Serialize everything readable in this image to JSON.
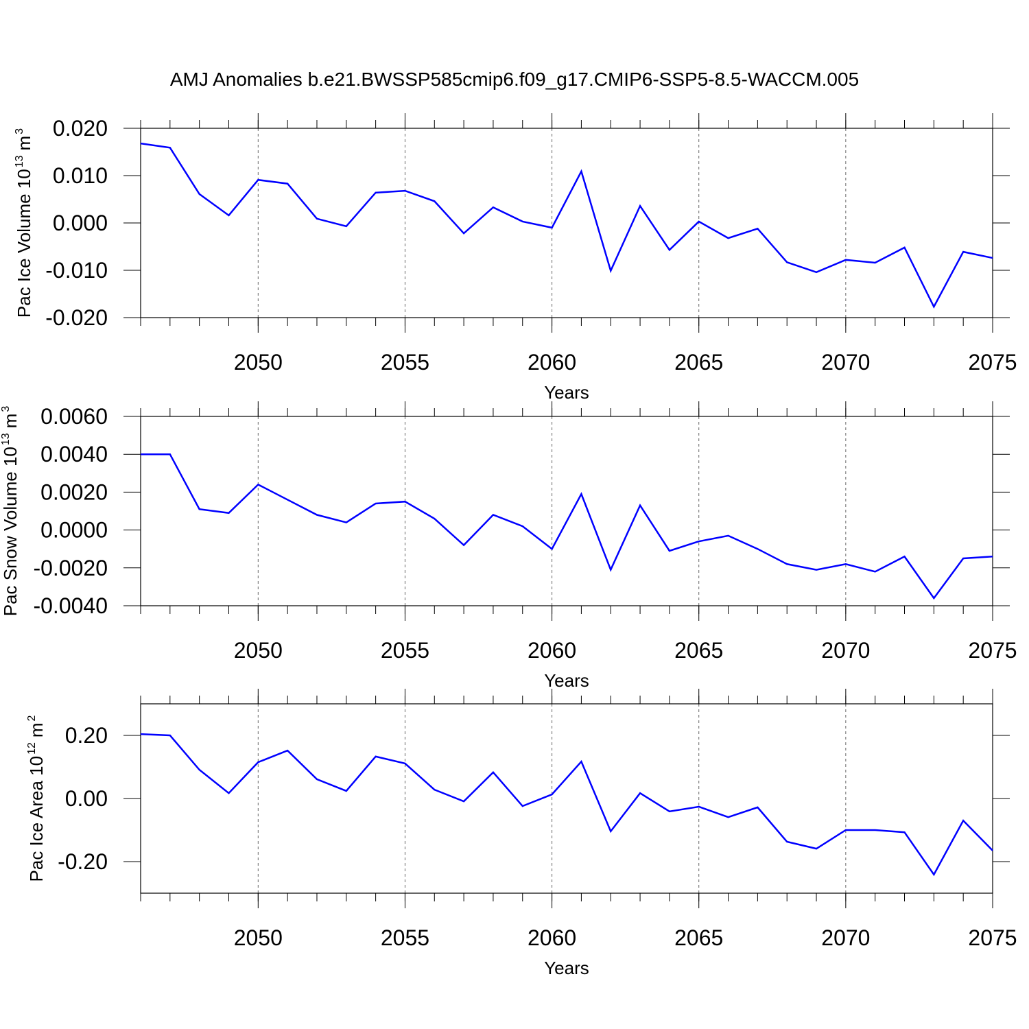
{
  "title": "AMJ Anomalies b.e21.BWSSP585cmip6.f09_g17.CMIP6-SSP5-8.5-WACCM.005",
  "chart_data": [
    {
      "type": "line",
      "xlabel": "Years",
      "ylabel": [
        "Pac Ice Volume 10",
        "13",
        "m",
        "3"
      ],
      "x": [
        2046,
        2047,
        2048,
        2049,
        2050,
        2051,
        2052,
        2053,
        2054,
        2055,
        2056,
        2057,
        2058,
        2059,
        2060,
        2061,
        2062,
        2063,
        2064,
        2065,
        2066,
        2067,
        2068,
        2069,
        2070,
        2071,
        2072,
        2073,
        2074,
        2075
      ],
      "series": [
        {
          "color": "#0000ff",
          "values": [
            0.0168,
            0.0159,
            0.0061,
            0.0016,
            0.0091,
            0.0083,
            0.0009,
            -0.0007,
            0.0064,
            0.0068,
            0.0046,
            -0.0022,
            0.0033,
            0.0003,
            -0.001,
            0.0109,
            -0.0101,
            0.0036,
            -0.0057,
            0.0003,
            -0.0032,
            -0.0012,
            -0.0083,
            -0.0104,
            -0.0078,
            -0.0084,
            -0.0052,
            -0.0177,
            -0.0061,
            -0.0074
          ]
        }
      ],
      "xlim": [
        2046,
        2075
      ],
      "xticks": [
        2050,
        2055,
        2060,
        2065,
        2070,
        2075
      ],
      "ylim": [
        -0.02,
        0.02
      ],
      "yticks": [
        {
          "value": 0.02,
          "label": "0.020"
        },
        {
          "value": 0.01,
          "label": "0.010"
        },
        {
          "value": 0,
          "label": "0.000"
        },
        {
          "value": -0.01,
          "label": "-0.010"
        },
        {
          "value": -0.02,
          "label": "-0.020"
        }
      ],
      "xgrid": true
    },
    {
      "type": "line",
      "xlabel": "Years",
      "ylabel": [
        "Pac Snow Volume 10",
        "13",
        "m",
        "3"
      ],
      "x": [
        2046,
        2047,
        2048,
        2049,
        2050,
        2051,
        2052,
        2053,
        2054,
        2055,
        2056,
        2057,
        2058,
        2059,
        2060,
        2061,
        2062,
        2063,
        2064,
        2065,
        2066,
        2067,
        2068,
        2069,
        2070,
        2071,
        2072,
        2073,
        2074,
        2075
      ],
      "series": [
        {
          "color": "#0000ff",
          "values": [
            0.004,
            0.004,
            0.0011,
            0.0009,
            0.0024,
            0.0016,
            0.0008,
            0.0004,
            0.0014,
            0.0015,
            0.0006,
            -0.0008,
            0.0008,
            0.0002,
            -0.001,
            0.0019,
            -0.0021,
            0.0013,
            -0.0011,
            -0.0006,
            -0.0003,
            -0.001,
            -0.0018,
            -0.0021,
            -0.0018,
            -0.0022,
            -0.0014,
            -0.0036,
            -0.0015,
            -0.0014
          ]
        }
      ],
      "xlim": [
        2046,
        2075
      ],
      "xticks": [
        2050,
        2055,
        2060,
        2065,
        2070,
        2075
      ],
      "ylim": [
        -0.004,
        0.006
      ],
      "yticks": [
        {
          "value": 0.006,
          "label": "0.0060"
        },
        {
          "value": 0.004,
          "label": "0.0040"
        },
        {
          "value": 0.002,
          "label": "0.0020"
        },
        {
          "value": 0,
          "label": "0.0000"
        },
        {
          "value": -0.002,
          "label": "-0.0020"
        },
        {
          "value": -0.004,
          "label": "-0.0040"
        }
      ],
      "xgrid": true
    },
    {
      "type": "line",
      "xlabel": "Years",
      "ylabel": [
        "Pac Ice Area 10",
        "12",
        "m",
        "2"
      ],
      "x": [
        2046,
        2047,
        2048,
        2049,
        2050,
        2051,
        2052,
        2053,
        2054,
        2055,
        2056,
        2057,
        2058,
        2059,
        2060,
        2061,
        2062,
        2063,
        2064,
        2065,
        2066,
        2067,
        2068,
        2069,
        2070,
        2071,
        2072,
        2073,
        2074,
        2075
      ],
      "series": [
        {
          "color": "#0000ff",
          "values": [
            0.204,
            0.2,
            0.091,
            0.017,
            0.115,
            0.152,
            0.061,
            0.024,
            0.133,
            0.111,
            0.028,
            -0.009,
            0.083,
            -0.024,
            0.013,
            0.117,
            -0.104,
            0.017,
            -0.041,
            -0.026,
            -0.059,
            -0.028,
            -0.137,
            -0.159,
            -0.1,
            -0.1,
            -0.107,
            -0.241,
            -0.07,
            -0.165
          ]
        }
      ],
      "xlim": [
        2046,
        2075
      ],
      "xticks": [
        2050,
        2055,
        2060,
        2065,
        2070,
        2075
      ],
      "ylim": [
        -0.3,
        0.3
      ],
      "yticks": [
        {
          "value": 0.2,
          "label": "0.20"
        },
        {
          "value": 0,
          "label": "0.00"
        },
        {
          "value": -0.2,
          "label": "-0.20"
        }
      ],
      "xgrid": true
    }
  ]
}
